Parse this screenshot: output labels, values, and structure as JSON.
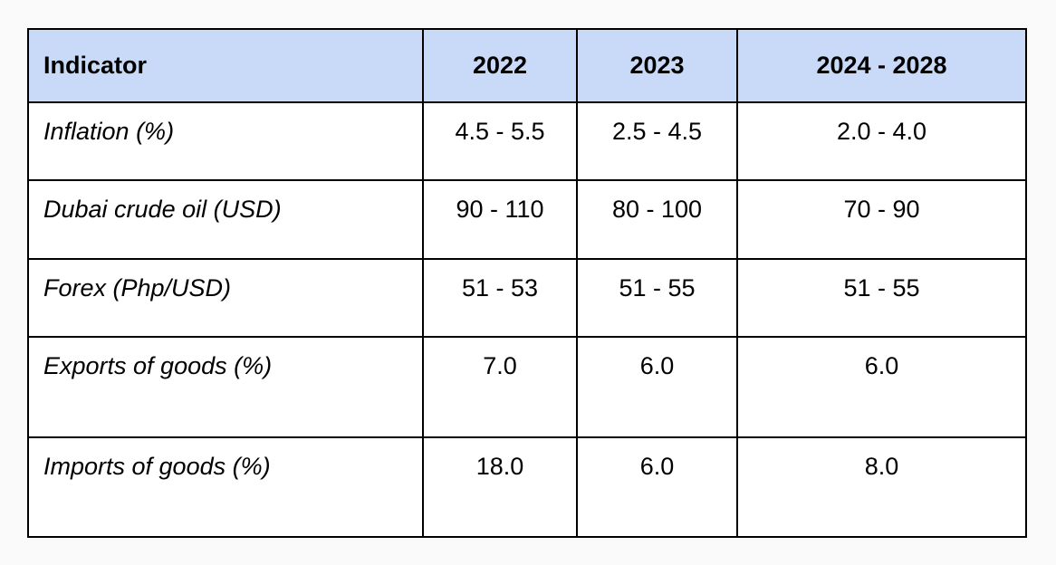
{
  "table": {
    "headers": [
      "Indicator",
      "2022",
      "2023",
      "2024 - 2028"
    ],
    "rows": [
      {
        "indicator": "Inflation (%)",
        "y2022": "4.5 - 5.5",
        "y2023": "2.5 - 4.5",
        "y2024_2028": "2.0 - 4.0"
      },
      {
        "indicator": "Dubai crude oil (USD)",
        "y2022": "90 - 110",
        "y2023": "80 - 100",
        "y2024_2028": "70 - 90"
      },
      {
        "indicator": "Forex (Php/USD)",
        "y2022": "51 - 53",
        "y2023": "51 - 55",
        "y2024_2028": "51 - 55"
      },
      {
        "indicator": "Exports of goods (%)",
        "y2022": "7.0",
        "y2023": "6.0",
        "y2024_2028": "6.0"
      },
      {
        "indicator": "Imports of goods (%)",
        "y2022": "18.0",
        "y2023": "6.0",
        "y2024_2028": "8.0"
      }
    ]
  },
  "colors": {
    "header_bg": "#c9daf8",
    "border": "#000000",
    "page_bg": "#fafafa"
  }
}
